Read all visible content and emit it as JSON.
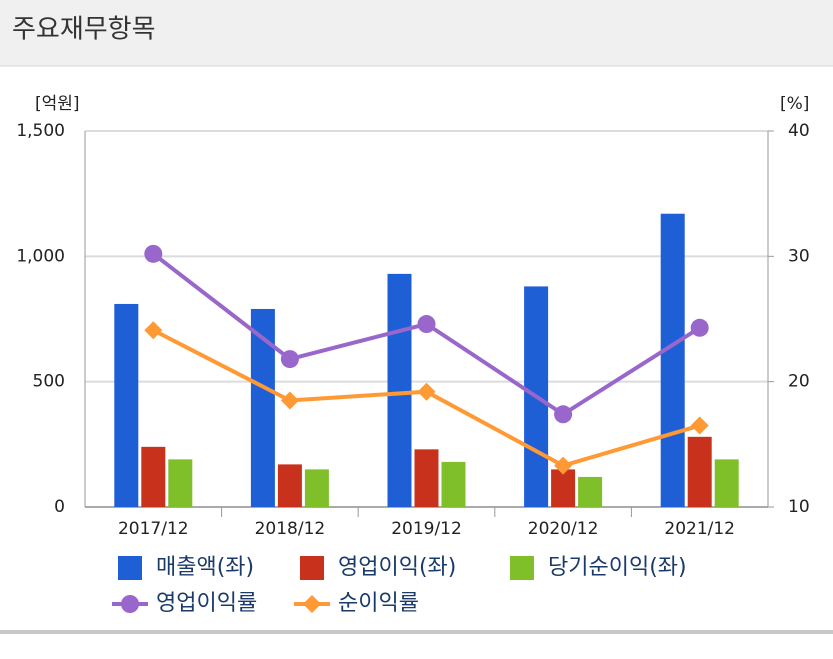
{
  "chart_data": {
    "type": "bar",
    "title": "주요재무항목",
    "y_unit": "[억원]",
    "y2_unit": "[%]",
    "categories": [
      "2017/12",
      "2018/12",
      "2019/12",
      "2020/12",
      "2021/12"
    ],
    "series": [
      {
        "name": "매출액(좌)",
        "color": "#1f5fd6",
        "values": [
          810,
          790,
          930,
          880,
          1170
        ]
      },
      {
        "name": "영업이익(좌)",
        "color": "#c8321c",
        "values": [
          240,
          170,
          230,
          150,
          280
        ]
      },
      {
        "name": "당기순이익(좌)",
        "color": "#7fbf2a",
        "values": [
          190,
          150,
          180,
          120,
          190
        ]
      },
      {
        "name": "영업이익률",
        "color": "#9966cc",
        "type": "line",
        "marker": "circle",
        "axis": "y2",
        "values": [
          30.2,
          21.8,
          24.6,
          17.4,
          24.3
        ]
      },
      {
        "name": "순이익률",
        "color": "#ff9933",
        "type": "line",
        "marker": "diamond",
        "axis": "y2",
        "values": [
          24.1,
          18.5,
          19.2,
          13.3,
          16.5
        ]
      }
    ],
    "ylim": [
      0,
      1500
    ],
    "yticks": [
      0,
      500,
      {
        "value": 1000,
        "label": "1,000"
      },
      {
        "value": 1500,
        "label": "1,500"
      }
    ],
    "y2lim": [
      10,
      40
    ],
    "y2ticks": [
      10,
      20,
      30,
      40
    ],
    "grid": true
  }
}
